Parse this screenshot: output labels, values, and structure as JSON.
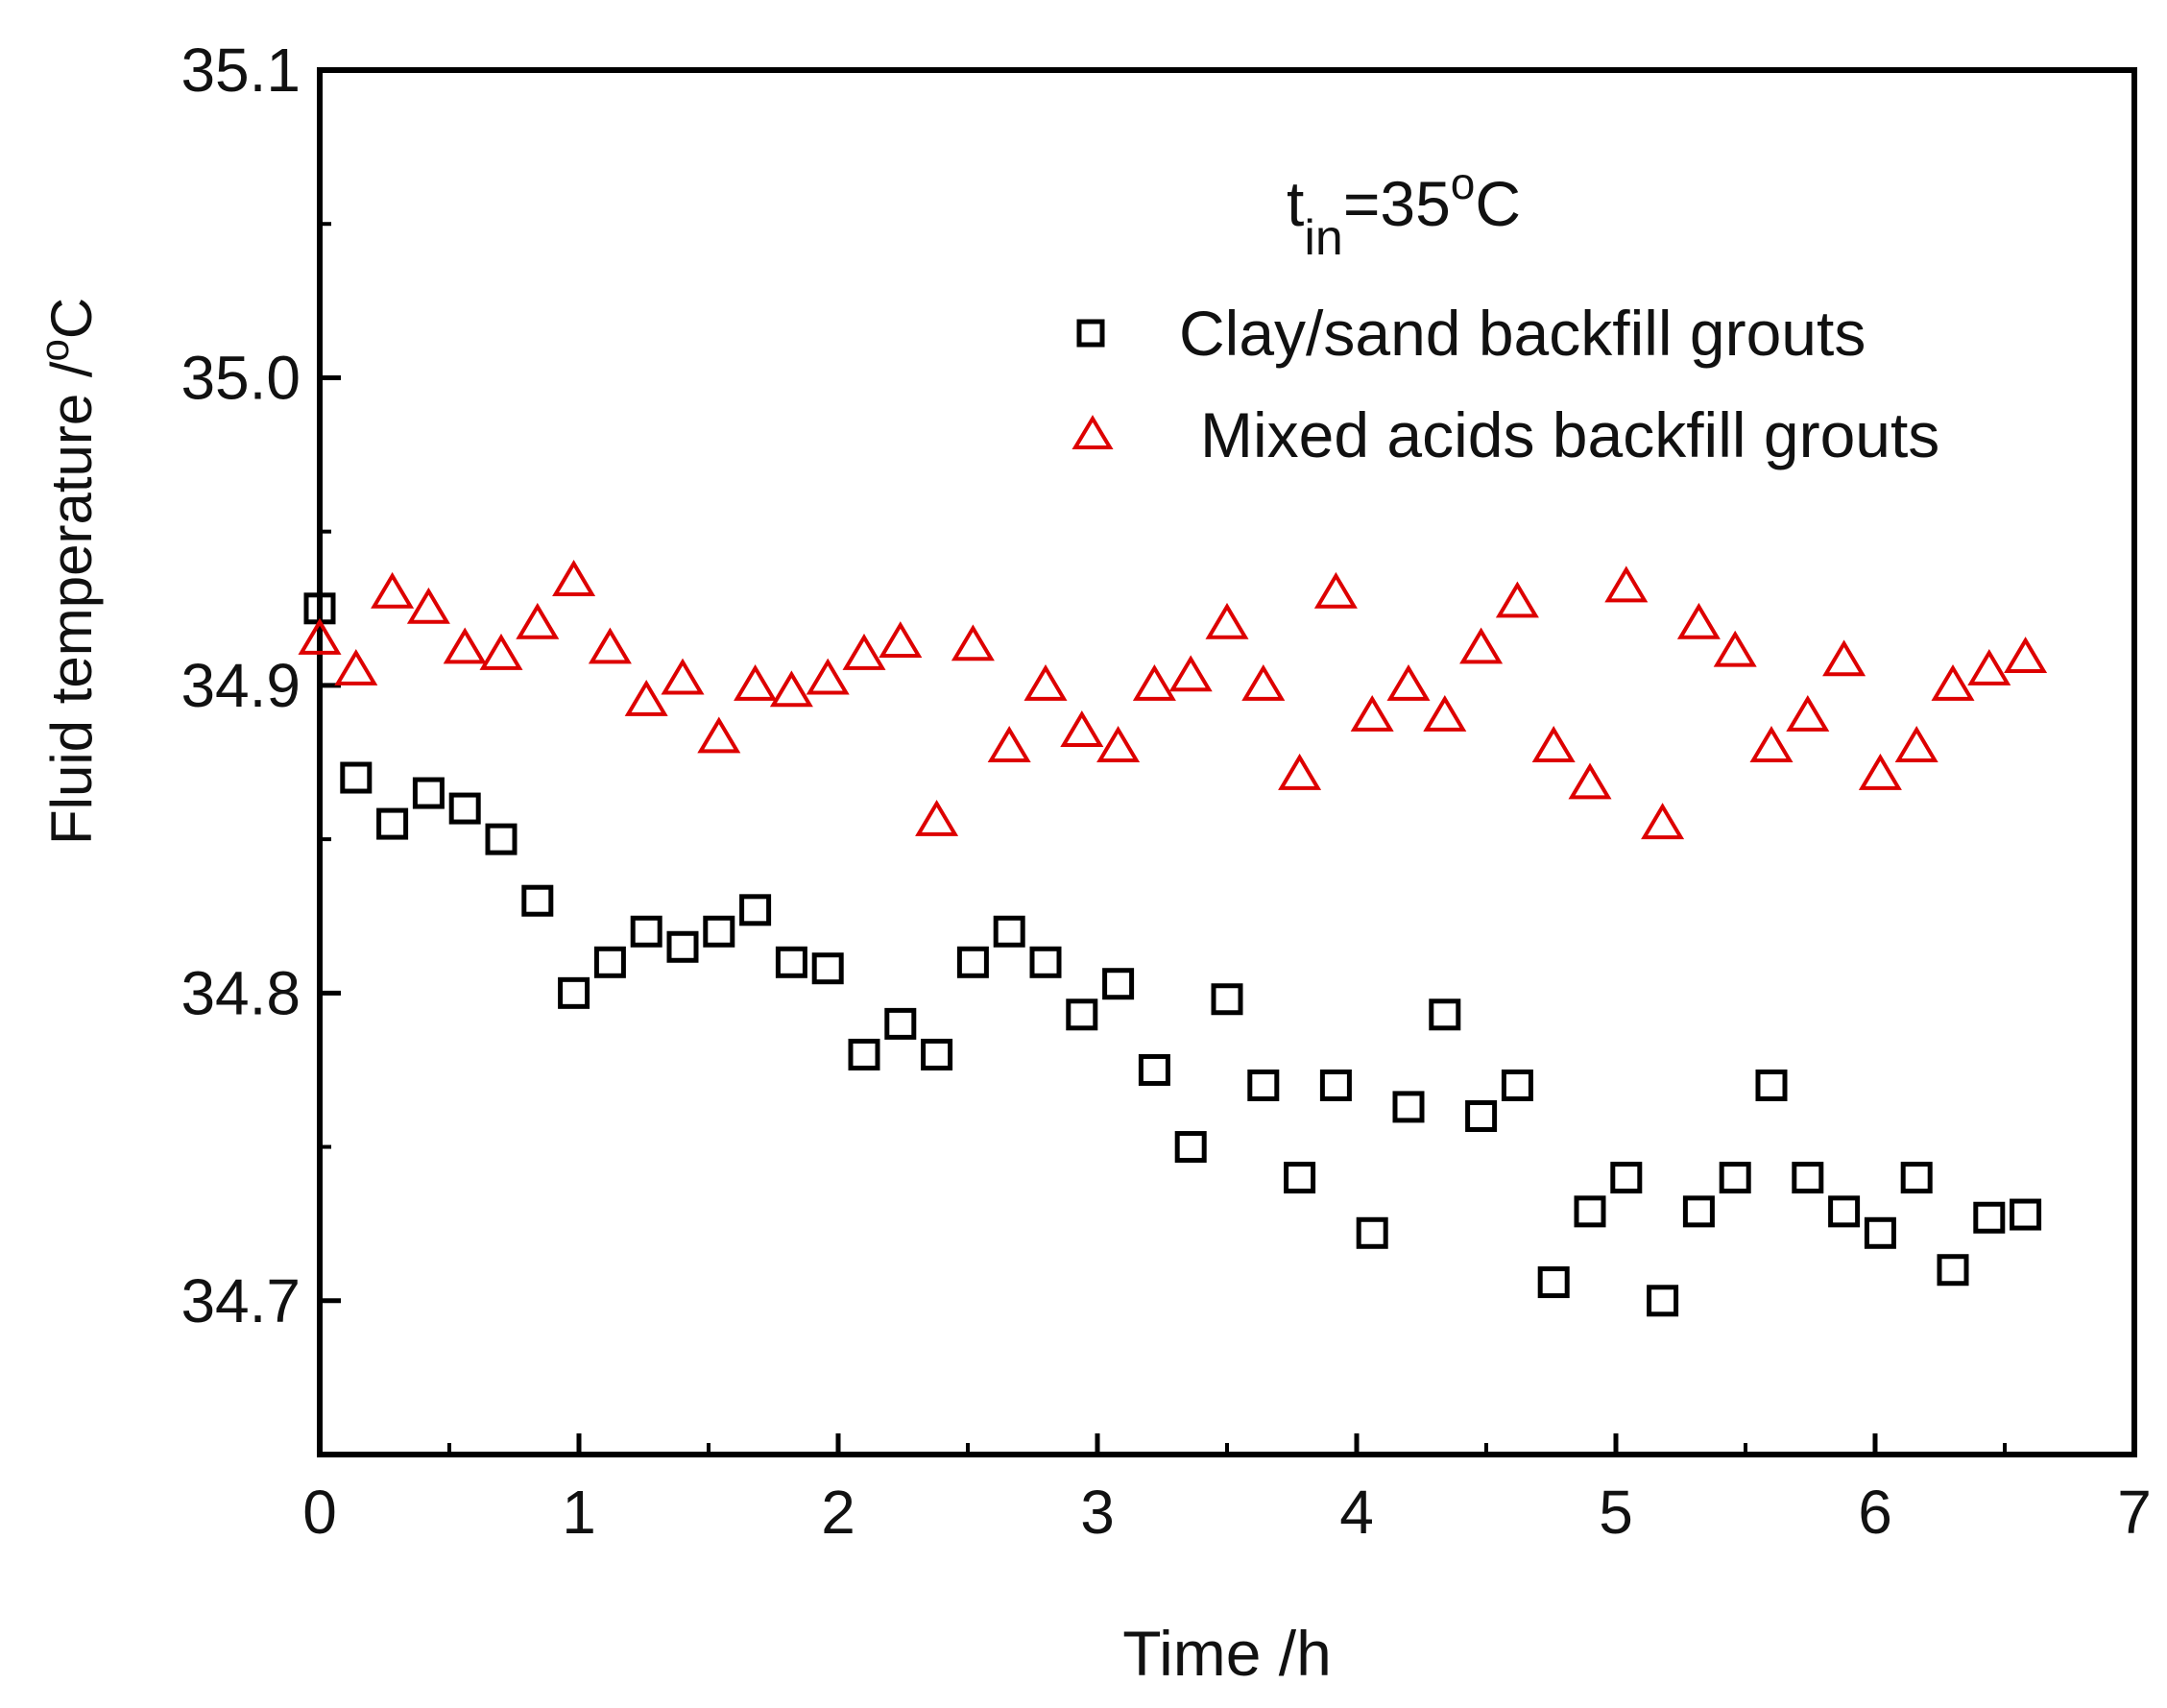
{
  "chart_data": {
    "type": "scatter",
    "xlabel": "Time /h",
    "ylabel_main": "Fluid temperature /",
    "ylabel_sup": "o",
    "ylabel_unit": "C",
    "annotation": {
      "base": "t",
      "sub": "in",
      "eq": "=35",
      "sup": "o",
      "unit": "C"
    },
    "xlim": [
      0,
      7
    ],
    "ylim": [
      34.65,
      35.1
    ],
    "x_ticks": [
      0,
      1,
      2,
      3,
      4,
      5,
      6,
      7
    ],
    "x_tick_labels": [
      "0",
      "1",
      "2",
      "3",
      "4",
      "5",
      "6",
      "7"
    ],
    "y_ticks": [
      34.7,
      34.8,
      34.9,
      35.0,
      35.1
    ],
    "y_tick_labels": [
      "34.7",
      "34.8",
      "34.9",
      "35.0",
      "35.1"
    ],
    "legend_position": "top-right",
    "series": [
      {
        "name": "Clay/sand backfill grouts",
        "marker": "square",
        "color": "#000000",
        "x": [
          0.0,
          0.14,
          0.28,
          0.42,
          0.56,
          0.7,
          0.84,
          0.98,
          1.12,
          1.26,
          1.4,
          1.54,
          1.68,
          1.82,
          1.96,
          2.1,
          2.24,
          2.38,
          2.52,
          2.66,
          2.8,
          2.94,
          3.08,
          3.22,
          3.36,
          3.5,
          3.64,
          3.78,
          3.92,
          4.06,
          4.2,
          4.34,
          4.48,
          4.62,
          4.76,
          4.9,
          5.04,
          5.18,
          5.32,
          5.46,
          5.6,
          5.74,
          5.88,
          6.02,
          6.16,
          6.3,
          6.44,
          6.58
        ],
        "y": [
          34.925,
          34.87,
          34.855,
          34.865,
          34.86,
          34.85,
          34.83,
          34.8,
          34.81,
          34.82,
          34.815,
          34.82,
          34.827,
          34.81,
          34.808,
          34.78,
          34.79,
          34.78,
          34.81,
          34.82,
          34.81,
          34.793,
          34.803,
          34.775,
          34.75,
          34.798,
          34.77,
          34.74,
          34.77,
          34.722,
          34.763,
          34.793,
          34.76,
          34.77,
          34.706,
          34.729,
          34.74,
          34.7,
          34.729,
          34.74,
          34.77,
          34.74,
          34.729,
          34.722,
          34.74,
          34.71,
          34.727,
          34.728
        ]
      },
      {
        "name": "Mixed acids backfill grouts",
        "marker": "triangle",
        "color": "#dd0000",
        "x": [
          0.0,
          0.14,
          0.28,
          0.42,
          0.56,
          0.7,
          0.84,
          0.98,
          1.12,
          1.26,
          1.4,
          1.54,
          1.68,
          1.82,
          1.96,
          2.1,
          2.24,
          2.38,
          2.52,
          2.66,
          2.8,
          2.94,
          3.08,
          3.22,
          3.36,
          3.5,
          3.64,
          3.78,
          3.92,
          4.06,
          4.2,
          4.34,
          4.48,
          4.62,
          4.76,
          4.9,
          5.04,
          5.18,
          5.32,
          5.46,
          5.6,
          5.74,
          5.88,
          6.02,
          6.16,
          6.3,
          6.44,
          6.58
        ],
        "y": [
          34.915,
          34.905,
          34.93,
          34.925,
          34.912,
          34.91,
          34.92,
          34.934,
          34.912,
          34.895,
          34.902,
          34.883,
          34.9,
          34.898,
          34.902,
          34.91,
          34.914,
          34.856,
          34.913,
          34.88,
          34.9,
          34.885,
          34.88,
          34.9,
          34.903,
          34.92,
          34.9,
          34.871,
          34.93,
          34.89,
          34.9,
          34.89,
          34.912,
          34.927,
          34.88,
          34.868,
          34.932,
          34.855,
          34.92,
          34.911,
          34.88,
          34.89,
          34.908,
          34.871,
          34.88,
          34.9,
          34.905,
          34.909
        ]
      }
    ]
  }
}
